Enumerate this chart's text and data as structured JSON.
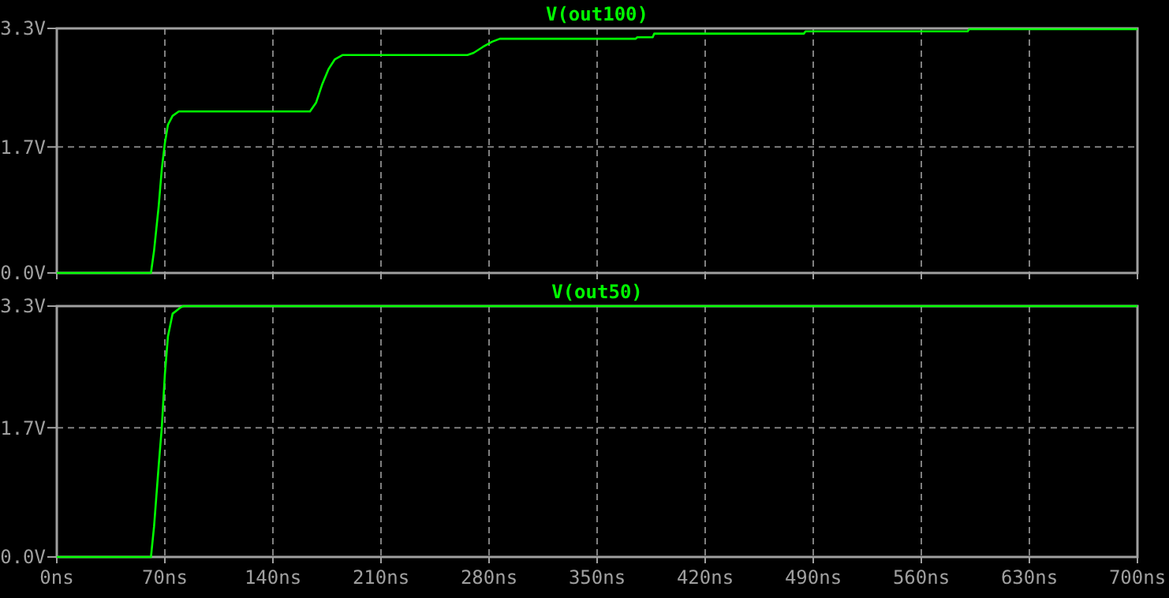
{
  "chart_data": [
    {
      "type": "line",
      "title": "V(out100)",
      "x": [
        0,
        61,
        63,
        66,
        68,
        70,
        72,
        75,
        79,
        164,
        168,
        172,
        176,
        180,
        185,
        266,
        270,
        276,
        282,
        287,
        375,
        376,
        386,
        387,
        484,
        485,
        590,
        591,
        700
      ],
      "series": [
        {
          "color": "#00ff00",
          "values": [
            0,
            0,
            0.3,
            0.9,
            1.4,
            1.75,
            2.0,
            2.12,
            2.18,
            2.18,
            2.3,
            2.55,
            2.75,
            2.88,
            2.94,
            2.94,
            2.97,
            3.05,
            3.12,
            3.16,
            3.16,
            3.18,
            3.18,
            3.23,
            3.23,
            3.26,
            3.26,
            3.29,
            3.29
          ]
        }
      ],
      "xlim": [
        0,
        700
      ],
      "xticks": [
        {
          "value": 0,
          "label": null
        },
        {
          "value": 70,
          "label": null
        },
        {
          "value": 140,
          "label": null
        },
        {
          "value": 210,
          "label": null
        },
        {
          "value": 280,
          "label": null
        },
        {
          "value": 350,
          "label": null
        },
        {
          "value": 420,
          "label": null
        },
        {
          "value": 490,
          "label": null
        },
        {
          "value": 560,
          "label": null
        },
        {
          "value": 630,
          "label": null
        },
        {
          "value": 700,
          "label": null
        }
      ],
      "ylim": [
        0,
        3.3
      ],
      "yticks": [
        {
          "value": 0,
          "label": "0.0V"
        },
        {
          "value": 1.7,
          "label": "1.7V"
        },
        {
          "value": 3.3,
          "label": "3.3V"
        }
      ],
      "grid": true,
      "line_style": "solid",
      "tick_labels": "y"
    },
    {
      "type": "line",
      "title": "V(out50)",
      "x": [
        0,
        61,
        63,
        66,
        68,
        70,
        72,
        75,
        80,
        82,
        700
      ],
      "series": [
        {
          "color": "#00ff00",
          "values": [
            0,
            0,
            0.4,
            1.2,
            1.7,
            2.4,
            2.9,
            3.2,
            3.28,
            3.3,
            3.3
          ]
        }
      ],
      "xlim": [
        0,
        700
      ],
      "xticks": [
        {
          "value": 0,
          "label": "0ns"
        },
        {
          "value": 70,
          "label": "70ns"
        },
        {
          "value": 140,
          "label": "140ns"
        },
        {
          "value": 210,
          "label": "210ns"
        },
        {
          "value": 280,
          "label": "280ns"
        },
        {
          "value": 350,
          "label": "350ns"
        },
        {
          "value": 420,
          "label": "420ns"
        },
        {
          "value": 490,
          "label": "490ns"
        },
        {
          "value": 560,
          "label": "560ns"
        },
        {
          "value": 630,
          "label": "630ns"
        },
        {
          "value": 700,
          "label": "700ns"
        }
      ],
      "ylim": [
        0,
        3.3
      ],
      "yticks": [
        {
          "value": 0,
          "label": "0.0V"
        },
        {
          "value": 1.7,
          "label": "1.7V"
        },
        {
          "value": 3.3,
          "label": "3.3V"
        }
      ],
      "grid": true,
      "line_style": "solid"
    }
  ]
}
